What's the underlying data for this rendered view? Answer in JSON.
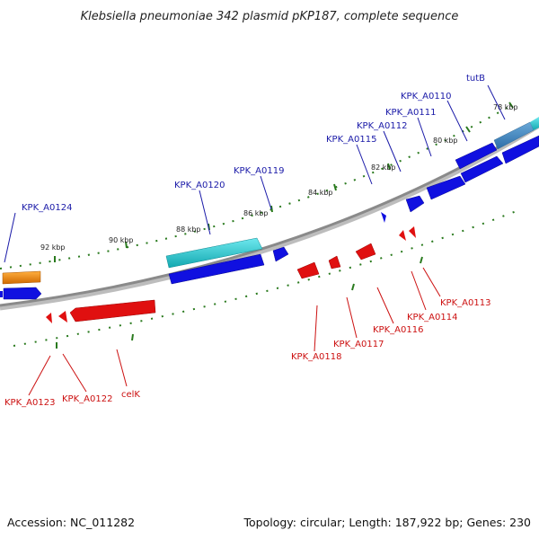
{
  "title": "Klebsiella pneumoniae 342 plasmid pKP187, complete sequence",
  "footer": {
    "accession": "Accession: NC_011282",
    "summary": "Topology: circular; Length: 187,922 bp; Genes: 230"
  },
  "colors": {
    "backbone": "#8a8a8a",
    "tick": "#2a7a1e",
    "forward_gene": "#1010e0",
    "forward_label": "#1a1aa8",
    "reverse_gene": "#e01010",
    "reverse_label": "#cc1010",
    "cyan_gene": "#20c0c8",
    "orange_gene": "#f08a10"
  },
  "scale": {
    "ticks": [
      "78 kbp",
      "80 kbp",
      "82 kbp",
      "84 kbp",
      "86 kbp",
      "88 kbp",
      "90 kbp",
      "92 kbp"
    ]
  },
  "forward_labels": [
    "tutB",
    "KPK_A0110",
    "KPK_A0111",
    "KPK_A0112",
    "KPK_A0115",
    "KPK_A0119",
    "KPK_A0120",
    "KPK_A0124"
  ],
  "reverse_labels": [
    "KPK_A0113",
    "KPK_A0114",
    "KPK_A0116",
    "KPK_A0117",
    "KPK_A0118",
    "celK",
    "KPK_A0122",
    "KPK_A0123"
  ]
}
